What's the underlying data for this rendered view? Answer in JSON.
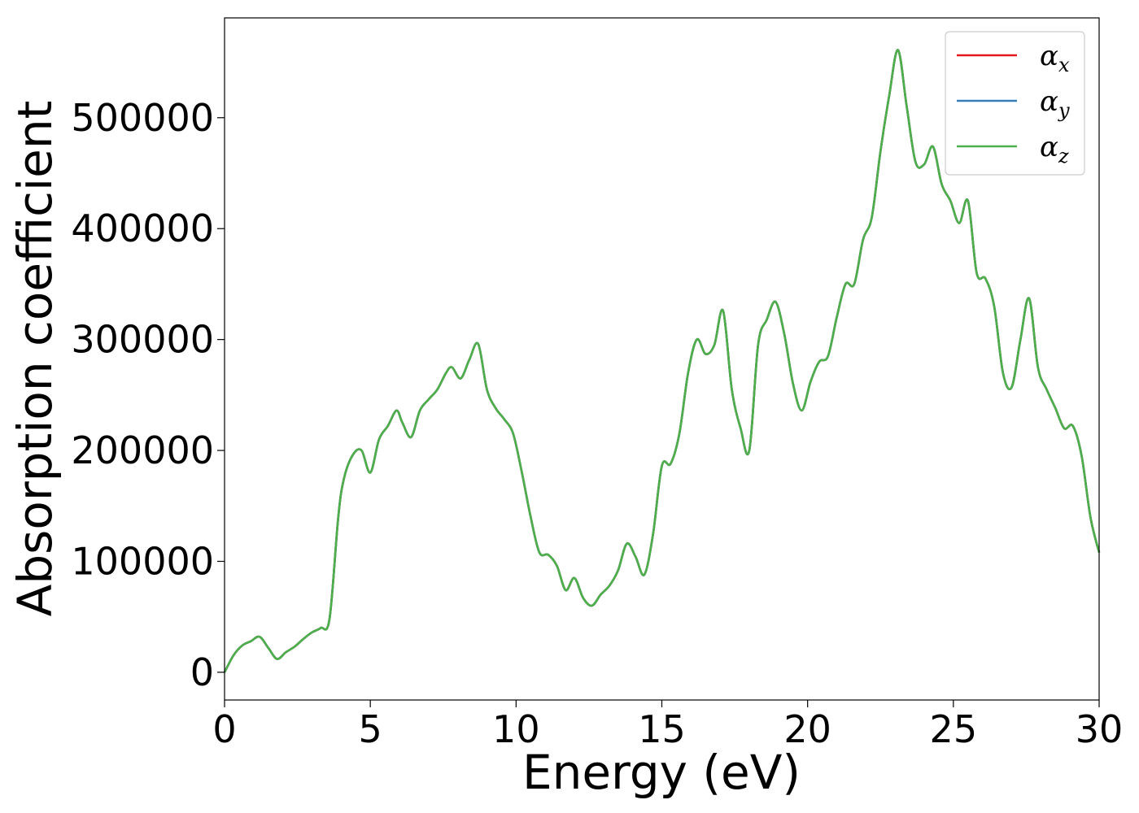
{
  "chart_data": {
    "type": "line",
    "title": "",
    "xlabel": "Energy (eV)",
    "ylabel": "Absorption coefficient",
    "xlim": [
      0,
      30
    ],
    "ylim": [
      -25000,
      590000
    ],
    "xticks": [
      0,
      5,
      10,
      15,
      20,
      25,
      30
    ],
    "xtick_labels": [
      "0",
      "5",
      "10",
      "15",
      "20",
      "25",
      "30"
    ],
    "yticks": [
      0,
      100000,
      200000,
      300000,
      400000,
      500000
    ],
    "ytick_labels": [
      "0",
      "100000",
      "200000",
      "300000",
      "400000",
      "500000"
    ],
    "grid": false,
    "legend_position": "top-right",
    "x": [
      0,
      0.3,
      0.6,
      0.9,
      1.2,
      1.5,
      1.8,
      2.1,
      2.4,
      2.7,
      3.0,
      3.3,
      3.6,
      3.9,
      4.1,
      4.4,
      4.7,
      5.0,
      5.3,
      5.6,
      5.9,
      6.1,
      6.4,
      6.7,
      7.0,
      7.3,
      7.6,
      7.8,
      8.1,
      8.4,
      8.7,
      9.0,
      9.3,
      9.6,
      9.9,
      10.2,
      10.5,
      10.8,
      11.1,
      11.4,
      11.7,
      12.0,
      12.3,
      12.6,
      12.9,
      13.2,
      13.5,
      13.8,
      14.1,
      14.4,
      14.7,
      15.0,
      15.3,
      15.6,
      15.9,
      16.2,
      16.5,
      16.8,
      17.1,
      17.4,
      17.7,
      18.0,
      18.3,
      18.6,
      18.9,
      19.2,
      19.5,
      19.8,
      20.1,
      20.4,
      20.7,
      21.0,
      21.3,
      21.6,
      21.9,
      22.2,
      22.5,
      22.8,
      23.1,
      23.4,
      23.7,
      24.0,
      24.3,
      24.6,
      24.9,
      25.2,
      25.5,
      25.8,
      26.1,
      26.4,
      26.7,
      27.0,
      27.3,
      27.6,
      27.9,
      28.2,
      28.5,
      28.8,
      29.1,
      29.4,
      29.7,
      30.0
    ],
    "series": [
      {
        "name": "α_x",
        "legend_symbol": "α",
        "legend_subscript": "x",
        "color": "#e41a1c",
        "values": [
          0,
          15000,
          24000,
          28000,
          32000,
          22000,
          12000,
          18000,
          23000,
          30000,
          36000,
          40000,
          48000,
          140000,
          175000,
          196000,
          200000,
          180000,
          210000,
          222000,
          236000,
          225000,
          212000,
          236000,
          246000,
          255000,
          270000,
          275000,
          265000,
          282000,
          296000,
          255000,
          238000,
          228000,
          215000,
          180000,
          140000,
          108000,
          106000,
          96000,
          74000,
          85000,
          67000,
          60000,
          70000,
          78000,
          92000,
          116000,
          104000,
          88000,
          125000,
          186000,
          188000,
          215000,
          270000,
          300000,
          287000,
          295000,
          326000,
          255000,
          220000,
          200000,
          295000,
          318000,
          334000,
          305000,
          260000,
          236000,
          262000,
          280000,
          285000,
          320000,
          350000,
          350000,
          390000,
          410000,
          470000,
          520000,
          561000,
          510000,
          460000,
          458000,
          474000,
          440000,
          425000,
          405000,
          425000,
          360000,
          355000,
          330000,
          270000,
          257000,
          300000,
          337000,
          275000,
          255000,
          238000,
          220000,
          222000,
          195000,
          140000,
          108000
        ]
      },
      {
        "name": "α_y",
        "legend_symbol": "α",
        "legend_subscript": "y",
        "color": "#377eb8",
        "values": [
          0,
          15000,
          24000,
          28000,
          32000,
          22000,
          12000,
          18000,
          23000,
          30000,
          36000,
          40000,
          48000,
          140000,
          175000,
          196000,
          200000,
          180000,
          210000,
          222000,
          236000,
          225000,
          212000,
          236000,
          246000,
          255000,
          270000,
          275000,
          265000,
          282000,
          296000,
          255000,
          238000,
          228000,
          215000,
          180000,
          140000,
          108000,
          106000,
          96000,
          74000,
          85000,
          67000,
          60000,
          70000,
          78000,
          92000,
          116000,
          104000,
          88000,
          125000,
          186000,
          188000,
          215000,
          270000,
          300000,
          287000,
          295000,
          326000,
          255000,
          220000,
          200000,
          295000,
          318000,
          334000,
          305000,
          260000,
          236000,
          262000,
          280000,
          285000,
          320000,
          350000,
          350000,
          390000,
          410000,
          470000,
          520000,
          561000,
          510000,
          460000,
          458000,
          474000,
          440000,
          425000,
          405000,
          425000,
          360000,
          355000,
          330000,
          270000,
          257000,
          300000,
          337000,
          275000,
          255000,
          238000,
          220000,
          222000,
          195000,
          140000,
          108000
        ]
      },
      {
        "name": "α_z",
        "legend_symbol": "α",
        "legend_subscript": "z",
        "color": "#4daf4a",
        "values": [
          0,
          15000,
          24000,
          28000,
          32000,
          22000,
          12000,
          18000,
          23000,
          30000,
          36000,
          40000,
          48000,
          140000,
          175000,
          196000,
          200000,
          180000,
          210000,
          222000,
          236000,
          225000,
          212000,
          236000,
          246000,
          255000,
          270000,
          275000,
          265000,
          282000,
          296000,
          255000,
          238000,
          228000,
          215000,
          180000,
          140000,
          108000,
          106000,
          96000,
          74000,
          85000,
          67000,
          60000,
          70000,
          78000,
          92000,
          116000,
          104000,
          88000,
          125000,
          186000,
          188000,
          215000,
          270000,
          300000,
          287000,
          295000,
          326000,
          255000,
          220000,
          200000,
          295000,
          318000,
          334000,
          305000,
          260000,
          236000,
          262000,
          280000,
          285000,
          320000,
          350000,
          350000,
          390000,
          410000,
          470000,
          520000,
          561000,
          510000,
          460000,
          458000,
          474000,
          440000,
          425000,
          405000,
          425000,
          360000,
          355000,
          330000,
          270000,
          257000,
          300000,
          337000,
          275000,
          255000,
          238000,
          220000,
          222000,
          195000,
          140000,
          108000
        ]
      }
    ]
  }
}
